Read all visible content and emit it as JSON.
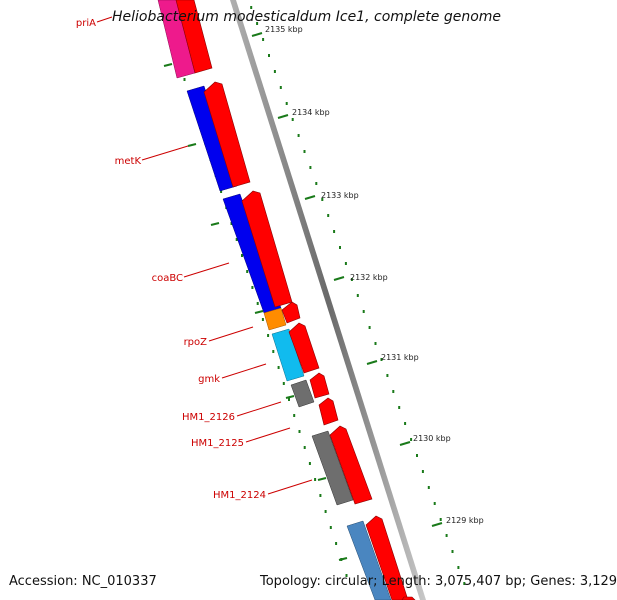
{
  "title": "Heliobacterium modesticaldum Ice1, complete genome",
  "footer": {
    "accession": "Accession: NC_010337",
    "summary": "Topology: circular; Length: 3,075,407 bp; Genes: 3,129"
  },
  "scale_labels": [
    "2135 kbp",
    "2134 kbp",
    "2133 kbp",
    "2132 kbp",
    "2131 kbp",
    "2130 kbp",
    "2129 kbp"
  ],
  "gene_labels": [
    "priA",
    "metK",
    "coaBC",
    "rpoZ",
    "gmk",
    "HM1_2126",
    "HM1_2125",
    "HM1_2124"
  ],
  "colors": {
    "label": "#cc0000",
    "forward_arrow": "#ff0000",
    "ruler_tick": "#1a7a1a",
    "backbone": "#8c8c8c",
    "blue": "#0000ee",
    "magenta": "#ee1a8c",
    "orange": "#ff8c00",
    "cyan": "#11bbee",
    "gray": "#6e6e6e",
    "steelblue": "#4a86c0"
  }
}
